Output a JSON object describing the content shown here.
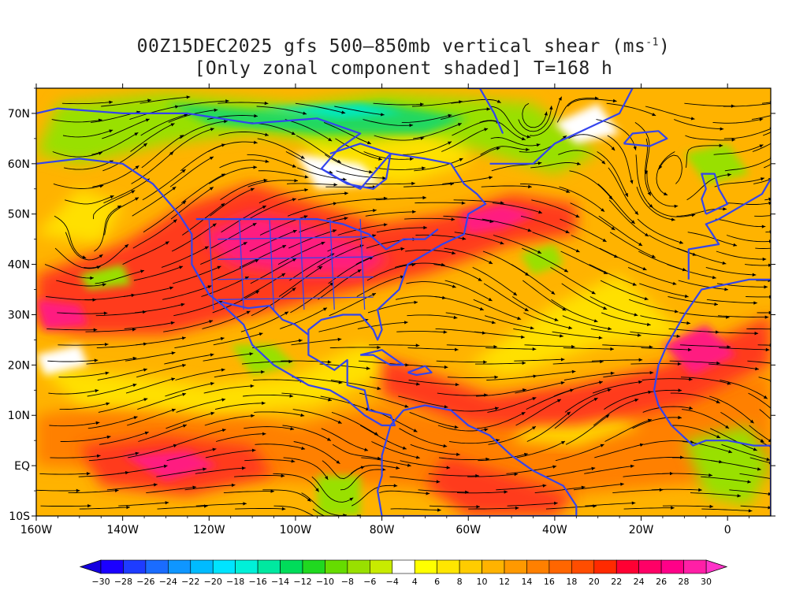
{
  "header": {
    "title_line1": "00Z15DEC2025 gfs 500–850mb vertical shear (ms",
    "title_sup": "-1",
    "title_line1_end": ")",
    "title_line2": "[Only zonal component shaded] T=168 h"
  },
  "map": {
    "lon_range": [
      -160,
      10
    ],
    "lat_range": [
      -10,
      75
    ],
    "lat_ticks": [
      {
        "value": 70,
        "label": "70N"
      },
      {
        "value": 60,
        "label": "60N"
      },
      {
        "value": 50,
        "label": "50N"
      },
      {
        "value": 40,
        "label": "40N"
      },
      {
        "value": 30,
        "label": "30N"
      },
      {
        "value": 20,
        "label": "20N"
      },
      {
        "value": 10,
        "label": "10N"
      },
      {
        "value": 0,
        "label": "EQ"
      },
      {
        "value": -10,
        "label": "10S"
      }
    ],
    "lon_ticks": [
      {
        "value": -160,
        "label": "160W"
      },
      {
        "value": -140,
        "label": "140W"
      },
      {
        "value": -120,
        "label": "120W"
      },
      {
        "value": -100,
        "label": "100W"
      },
      {
        "value": -80,
        "label": "80W"
      },
      {
        "value": -60,
        "label": "60W"
      },
      {
        "value": -40,
        "label": "40W"
      },
      {
        "value": -20,
        "label": "20W"
      },
      {
        "value": 0,
        "label": "0"
      }
    ]
  },
  "colorbar": {
    "levels": [
      "-30",
      "-28",
      "-26",
      "-24",
      "-22",
      "-20",
      "-18",
      "-16",
      "-14",
      "-12",
      "-10",
      "-8",
      "-6",
      "-4",
      "4",
      "6",
      "8",
      "10",
      "12",
      "14",
      "16",
      "18",
      "20",
      "22",
      "24",
      "26",
      "28",
      "30"
    ],
    "colors": [
      "#1b00ff",
      "#1e3cff",
      "#1a6cff",
      "#0f96ff",
      "#00bbff",
      "#00e4ff",
      "#00f0d8",
      "#00e8a0",
      "#00dc5a",
      "#20d820",
      "#66dc00",
      "#99e000",
      "#c8eb00",
      "#ffffff",
      "#ffff00",
      "#ffe600",
      "#ffcc00",
      "#ffb300",
      "#ff9900",
      "#ff8000",
      "#ff6600",
      "#ff4d00",
      "#ff2a00",
      "#ff0033",
      "#ff0066",
      "#ff0088",
      "#ff1fa6"
    ],
    "left_arrow_color": "#1400e0",
    "right_arrow_color": "#ff33c8"
  },
  "fields": {
    "jet_colors": {
      "core": "#ff1a80",
      "strong": "#ff3a1a",
      "mid": "#ff8000",
      "low": "#ffb300",
      "weak": "#ffe000",
      "neg_weak": "#99e000",
      "neg_mid": "#20d860",
      "neg_strong": "#00e8c0",
      "neg_core": "#00a8ff"
    },
    "coast_color": "#3344ee",
    "streamline_color": "#000000"
  }
}
